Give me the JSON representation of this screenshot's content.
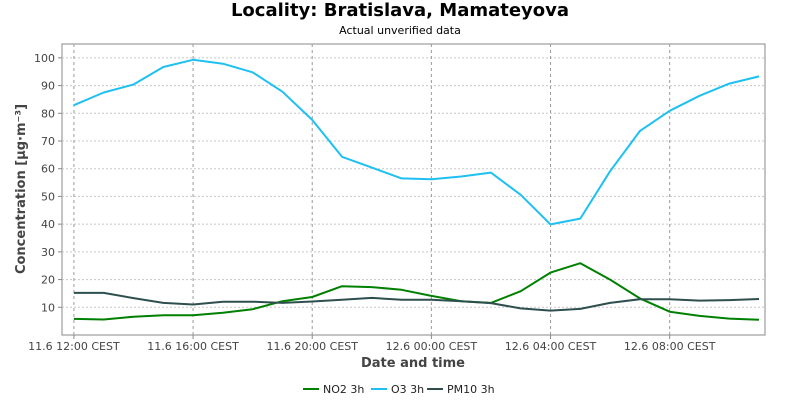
{
  "title": "Locality: Bratislava, Mamateyova",
  "subtitle": "Actual unverified data",
  "chart_data": {
    "type": "line",
    "xlabel": "Date and time",
    "ylabel": "Concentration [µg·m⁻³]",
    "ylim": [
      0,
      105
    ],
    "yticks": [
      10,
      20,
      30,
      40,
      50,
      60,
      70,
      80,
      90,
      100
    ],
    "x_tick_labels": [
      "11.6 12:00 CEST",
      "11.6 16:00 CEST",
      "11.6 20:00 CEST",
      "12.6 00:00 CEST",
      "12.6 04:00 CEST",
      "12.6 08:00 CEST"
    ],
    "x_tick_hours": [
      0,
      4,
      8,
      12,
      16,
      20
    ],
    "xlim_hours": [
      -0.4,
      23.2
    ],
    "x_hours": [
      0,
      1,
      2,
      3,
      4,
      5,
      6,
      7,
      8,
      9,
      10,
      11,
      12,
      13,
      14,
      15,
      16,
      17,
      18,
      19,
      20,
      21,
      22,
      23
    ],
    "grid": true,
    "legend": "bottom-center",
    "series": [
      {
        "name": "NO2 3h",
        "color": "#008000",
        "values": [
          5.8,
          5.6,
          6.6,
          7.1,
          7.1,
          8.0,
          9.3,
          12.2,
          13.7,
          17.6,
          17.3,
          16.3,
          14.1,
          12.2,
          11.6,
          15.8,
          22.5,
          25.9,
          20.0,
          13.2,
          8.4,
          6.9,
          5.9,
          5.5
        ]
      },
      {
        "name": "O3 3h",
        "color": "#1ec0f2",
        "values": [
          82.9,
          87.5,
          90.4,
          96.7,
          99.3,
          97.9,
          94.8,
          87.8,
          77.6,
          64.3,
          60.4,
          56.5,
          56.2,
          57.2,
          58.6,
          50.6,
          39.9,
          42.0,
          59.1,
          73.6,
          80.9,
          86.3,
          90.7,
          93.3
        ]
      },
      {
        "name": "PM10 3h",
        "color": "#2f4f4f",
        "values": [
          15.2,
          15.2,
          13.3,
          11.6,
          11.0,
          12.0,
          12.0,
          11.6,
          12.1,
          12.7,
          13.4,
          12.7,
          12.7,
          12.2,
          11.5,
          9.6,
          8.8,
          9.4,
          11.6,
          12.9,
          12.9,
          12.4,
          12.6,
          13.0
        ]
      }
    ]
  }
}
